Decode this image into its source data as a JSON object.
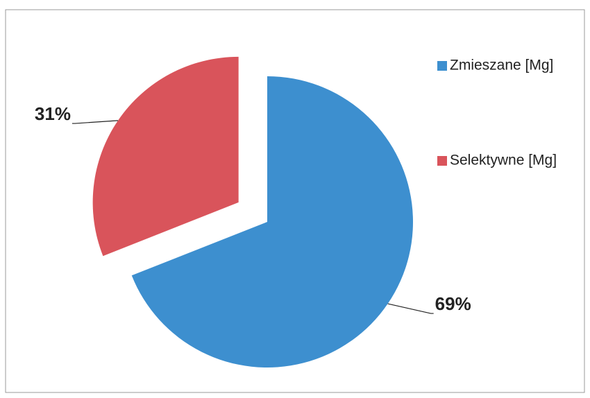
{
  "chart_data": {
    "type": "pie",
    "categories": [
      "Zmieszane [Mg]",
      "Selektywne [Mg]"
    ],
    "values": [
      69,
      31
    ],
    "value_labels": [
      "69%",
      "31%"
    ],
    "colors": [
      "#3d8fcf",
      "#d9545b"
    ],
    "exploded": true,
    "legend": "right"
  }
}
